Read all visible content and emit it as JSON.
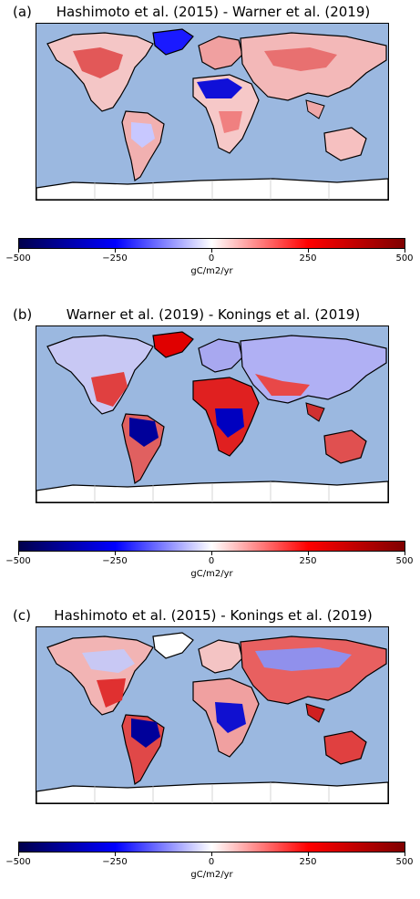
{
  "panels": [
    {
      "letter": "(a)",
      "title": "Hashimoto et al. (2015) - Warner et al. (2019)",
      "colorbar": {
        "ticks": [
          "−500",
          "−250",
          "0",
          "250",
          "500"
        ],
        "unit": "gC/m2/yr"
      }
    },
    {
      "letter": "(b)",
      "title": "Warner et al. (2019) - Konings et al. (2019)",
      "colorbar": {
        "ticks": [
          "−500",
          "−250",
          "0",
          "250",
          "500"
        ],
        "unit": "gC/m2/yr"
      }
    },
    {
      "letter": "(c)",
      "title": "Hashimoto et al. (2015) - Konings et al. (2019)",
      "colorbar": {
        "ticks": [
          "−500",
          "−250",
          "0",
          "250",
          "500"
        ],
        "unit": "gC/m2/yr"
      }
    }
  ],
  "colors": {
    "ocean": "#9bb8e0",
    "land_missing": "#ffffff",
    "colormap_min": "#00004c",
    "colormap_mid_low": "#0000ff",
    "colormap_zero": "#ffffff",
    "colormap_mid_high": "#ff0000",
    "colormap_max": "#7f0000"
  }
}
